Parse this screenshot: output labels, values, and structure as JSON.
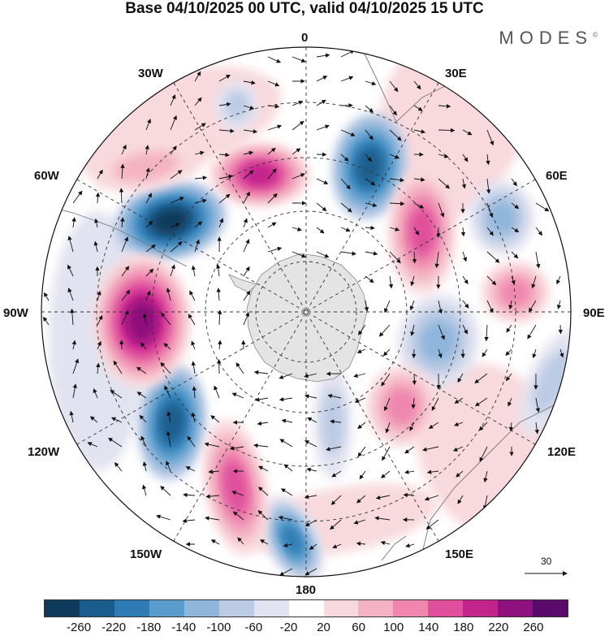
{
  "title": "Base 04/10/2025 00 UTC, valid 04/10/2025 15 UTC",
  "brand": "MODES",
  "brand_mark": "©",
  "longitude_labels": {
    "top": "0",
    "top_right": "30E",
    "right_upper": "60E",
    "right": "90E",
    "right_lower": "120E",
    "bottom_right": "150E",
    "bottom": "180",
    "bottom_left": "150W",
    "left_lower": "120W",
    "left": "90W",
    "left_upper": "60W",
    "top_left": "30W"
  },
  "vector_scale": {
    "label": "30"
  },
  "colorbar": {
    "colors": [
      "#0f3a5c",
      "#1a5d8c",
      "#2f7bb5",
      "#5a9dcc",
      "#8fb6db",
      "#bccbe4",
      "#e2e3f0",
      "#ffffff",
      "#f8d9dd",
      "#f4b3c3",
      "#ee86ad",
      "#e04f9c",
      "#c3248c",
      "#8e117d",
      "#5a0a6a"
    ],
    "ticks": [
      "-260",
      "-220",
      "-180",
      "-140",
      "-100",
      "-60",
      "-20",
      "20",
      "60",
      "100",
      "140",
      "180",
      "220",
      "260"
    ]
  },
  "chart_data": {
    "type": "heatmap",
    "projection": "south-polar-stereographic",
    "title": "Base 04/10/2025 00 UTC, valid 04/10/2025 15 UTC",
    "levels": [
      -260,
      -220,
      -180,
      -140,
      -100,
      -60,
      -20,
      20,
      60,
      100,
      140,
      180,
      220,
      260
    ],
    "vector_reference": 30
  }
}
